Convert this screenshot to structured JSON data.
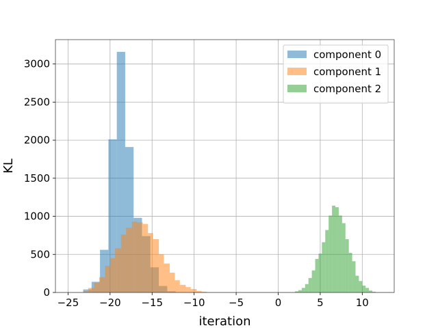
{
  "chart_data": {
    "type": "histogram",
    "xlabel": "iteration",
    "ylabel": "KL",
    "xlim": [
      -26.5,
      13.8
    ],
    "ylim": [
      0,
      3320
    ],
    "xticks": [
      -25,
      -20,
      -15,
      -10,
      -5,
      0,
      5,
      10
    ],
    "xtick_labels": [
      "−25",
      "−20",
      "−15",
      "−10",
      "−5",
      "0",
      "5",
      "10"
    ],
    "yticks": [
      0,
      500,
      1000,
      1500,
      2000,
      2500,
      3000
    ],
    "grid": true,
    "legend_position": "top-right",
    "series": [
      {
        "name": "component 0",
        "color": "#1f77b4",
        "opacity": 0.5,
        "bins": [
          {
            "x0": -23.2,
            "x1": -22.2,
            "count": 40
          },
          {
            "x0": -22.2,
            "x1": -21.2,
            "count": 140
          },
          {
            "x0": -21.2,
            "x1": -20.2,
            "count": 560
          },
          {
            "x0": -20.2,
            "x1": -19.2,
            "count": 2010
          },
          {
            "x0": -19.2,
            "x1": -18.2,
            "count": 3160
          },
          {
            "x0": -18.2,
            "x1": -17.2,
            "count": 1910
          },
          {
            "x0": -17.2,
            "x1": -16.2,
            "count": 980
          },
          {
            "x0": -16.2,
            "x1": -15.2,
            "count": 740
          },
          {
            "x0": -15.2,
            "x1": -14.2,
            "count": 330
          },
          {
            "x0": -14.2,
            "x1": -13.2,
            "count": 85
          },
          {
            "x0": -13.2,
            "x1": -12.2,
            "count": 15
          }
        ]
      },
      {
        "name": "component 1",
        "color": "#ff7f0e",
        "opacity": 0.5,
        "bins": [
          {
            "x0": -23.2,
            "x1": -22.6,
            "count": 15
          },
          {
            "x0": -22.6,
            "x1": -21.9,
            "count": 60
          },
          {
            "x0": -21.9,
            "x1": -21.3,
            "count": 130
          },
          {
            "x0": -21.3,
            "x1": -20.6,
            "count": 200
          },
          {
            "x0": -20.6,
            "x1": -20.0,
            "count": 350
          },
          {
            "x0": -20.0,
            "x1": -19.4,
            "count": 450
          },
          {
            "x0": -19.4,
            "x1": -18.7,
            "count": 580
          },
          {
            "x0": -18.7,
            "x1": -18.1,
            "count": 760
          },
          {
            "x0": -18.1,
            "x1": -17.4,
            "count": 850
          },
          {
            "x0": -17.4,
            "x1": -16.8,
            "count": 930
          },
          {
            "x0": -16.8,
            "x1": -16.1,
            "count": 920
          },
          {
            "x0": -16.1,
            "x1": -15.5,
            "count": 900
          },
          {
            "x0": -15.5,
            "x1": -14.9,
            "count": 780
          },
          {
            "x0": -14.9,
            "x1": -14.2,
            "count": 700
          },
          {
            "x0": -14.2,
            "x1": -13.6,
            "count": 500
          },
          {
            "x0": -13.6,
            "x1": -12.9,
            "count": 380
          },
          {
            "x0": -12.9,
            "x1": -12.3,
            "count": 260
          },
          {
            "x0": -12.3,
            "x1": -11.7,
            "count": 160
          },
          {
            "x0": -11.7,
            "x1": -11.0,
            "count": 100
          },
          {
            "x0": -11.0,
            "x1": -10.4,
            "count": 70
          },
          {
            "x0": -10.4,
            "x1": -9.7,
            "count": 45
          },
          {
            "x0": -9.7,
            "x1": -9.1,
            "count": 20
          },
          {
            "x0": -9.1,
            "x1": -8.5,
            "count": 10
          }
        ]
      },
      {
        "name": "component 2",
        "color": "#2ca02c",
        "opacity": 0.5,
        "bins": [
          {
            "x0": 2.0,
            "x1": 2.4,
            "count": 15
          },
          {
            "x0": 2.4,
            "x1": 2.8,
            "count": 30
          },
          {
            "x0": 2.8,
            "x1": 3.2,
            "count": 60
          },
          {
            "x0": 3.2,
            "x1": 3.6,
            "count": 110
          },
          {
            "x0": 3.6,
            "x1": 4.0,
            "count": 190
          },
          {
            "x0": 4.0,
            "x1": 4.4,
            "count": 290
          },
          {
            "x0": 4.4,
            "x1": 4.8,
            "count": 440
          },
          {
            "x0": 4.8,
            "x1": 5.2,
            "count": 510
          },
          {
            "x0": 5.2,
            "x1": 5.6,
            "count": 660
          },
          {
            "x0": 5.6,
            "x1": 6.0,
            "count": 820
          },
          {
            "x0": 6.0,
            "x1": 6.4,
            "count": 1010
          },
          {
            "x0": 6.4,
            "x1": 6.8,
            "count": 1140
          },
          {
            "x0": 6.8,
            "x1": 7.2,
            "count": 1120
          },
          {
            "x0": 7.2,
            "x1": 7.6,
            "count": 1010
          },
          {
            "x0": 7.6,
            "x1": 8.0,
            "count": 910
          },
          {
            "x0": 8.0,
            "x1": 8.4,
            "count": 700
          },
          {
            "x0": 8.4,
            "x1": 8.8,
            "count": 520
          },
          {
            "x0": 8.8,
            "x1": 9.2,
            "count": 410
          },
          {
            "x0": 9.2,
            "x1": 9.6,
            "count": 220
          },
          {
            "x0": 9.6,
            "x1": 10.0,
            "count": 150
          },
          {
            "x0": 10.0,
            "x1": 10.4,
            "count": 90
          },
          {
            "x0": 10.4,
            "x1": 10.8,
            "count": 60
          },
          {
            "x0": 10.8,
            "x1": 11.2,
            "count": 25
          },
          {
            "x0": 11.2,
            "x1": 11.6,
            "count": 10
          }
        ]
      }
    ]
  }
}
